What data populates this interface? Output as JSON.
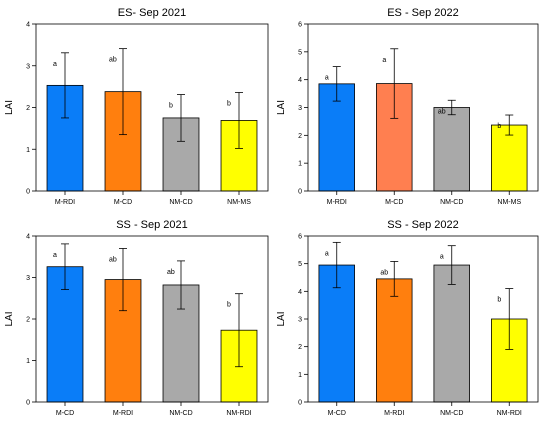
{
  "chart_data": [
    {
      "type": "bar",
      "title": "ES- Sep 2021",
      "ylabel": "LAI",
      "ylim": [
        0,
        4
      ],
      "yticks": [
        0,
        1,
        2,
        3,
        4
      ],
      "categories": [
        "M-RDI",
        "M-CD",
        "NM-CD",
        "NM-MS"
      ],
      "values": [
        2.53,
        2.38,
        1.75,
        1.69
      ],
      "errors": [
        0.78,
        1.03,
        0.56,
        0.67
      ],
      "letters": [
        "a",
        "ab",
        "b",
        "b"
      ],
      "colors": [
        "#0a7df8",
        "#ff7f0e",
        "#a9a9a9",
        "#ffff00"
      ]
    },
    {
      "type": "bar",
      "title": "ES - Sep 2022",
      "ylabel": "LAI",
      "ylim": [
        0,
        6
      ],
      "yticks": [
        0,
        1,
        2,
        3,
        4,
        5,
        6
      ],
      "categories": [
        "M-RDI",
        "M-CD",
        "NM-CD",
        "NM-MS"
      ],
      "values": [
        3.85,
        3.86,
        3.0,
        2.37
      ],
      "errors": [
        0.62,
        1.25,
        0.26,
        0.36
      ],
      "letters": [
        "a",
        "a",
        "ab",
        "b"
      ],
      "colors": [
        "#0a7df8",
        "#ff7f50",
        "#a9a9a9",
        "#ffff00"
      ]
    },
    {
      "type": "bar",
      "title": "SS - Sep 2021",
      "ylabel": "LAI",
      "ylim": [
        0,
        4
      ],
      "yticks": [
        0,
        1,
        2,
        3,
        4
      ],
      "categories": [
        "M-CD",
        "M-RDI",
        "NM-CD",
        "NM-RDI"
      ],
      "values": [
        3.26,
        2.95,
        2.82,
        1.73
      ],
      "errors": [
        0.55,
        0.75,
        0.58,
        0.88
      ],
      "letters": [
        "a",
        "ab",
        "ab",
        "b"
      ],
      "colors": [
        "#0a7df8",
        "#ff7f0e",
        "#a9a9a9",
        "#ffff00"
      ]
    },
    {
      "type": "bar",
      "title": "SS - Sep 2022",
      "ylabel": "LAI",
      "ylim": [
        0,
        6
      ],
      "yticks": [
        0,
        1,
        2,
        3,
        4,
        5,
        6
      ],
      "categories": [
        "M-CD",
        "M-RDI",
        "NM-CD",
        "NM-RDI"
      ],
      "values": [
        4.95,
        4.45,
        4.95,
        3.0
      ],
      "errors": [
        0.82,
        0.63,
        0.7,
        1.1
      ],
      "letters": [
        "a",
        "ab",
        "a",
        "b"
      ],
      "colors": [
        "#0a7df8",
        "#ff7f0e",
        "#a9a9a9",
        "#ffff00"
      ]
    }
  ]
}
